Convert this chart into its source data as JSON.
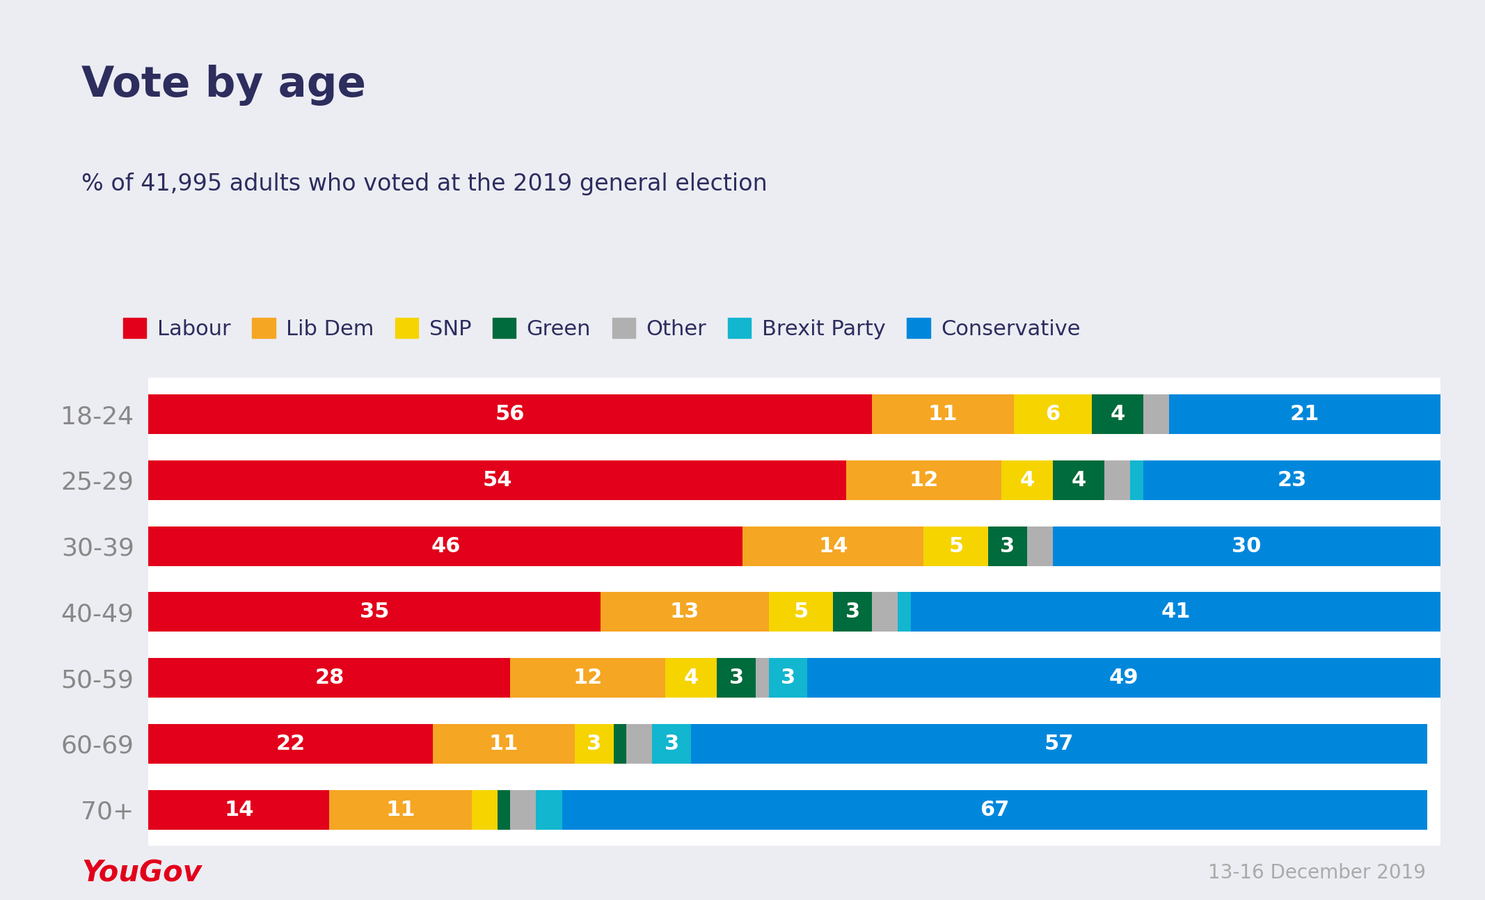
{
  "title": "Vote by age",
  "subtitle": "% of 41,995 adults who voted at the 2019 general election",
  "date_label": "13-16 December 2019",
  "yougov_label": "YouGov",
  "background_color": "#ecedf3",
  "age_groups": [
    "18-24",
    "25-29",
    "30-39",
    "40-49",
    "50-59",
    "60-69",
    "70+"
  ],
  "parties": [
    "Labour",
    "Lib Dem",
    "SNP",
    "Green",
    "Other",
    "Brexit Party",
    "Conservative"
  ],
  "colors": {
    "Labour": "#e2001a",
    "Lib Dem": "#f5a623",
    "SNP": "#f5d400",
    "Green": "#006b3c",
    "Other": "#b0b0b0",
    "Brexit Party": "#12b6cf",
    "Conservative": "#0087dc"
  },
  "data": {
    "18-24": {
      "Labour": 56,
      "Lib Dem": 11,
      "SNP": 6,
      "Green": 4,
      "Other": 2,
      "Brexit Party": 0,
      "Conservative": 21
    },
    "25-29": {
      "Labour": 54,
      "Lib Dem": 12,
      "SNP": 4,
      "Green": 4,
      "Other": 2,
      "Brexit Party": 1,
      "Conservative": 23
    },
    "30-39": {
      "Labour": 46,
      "Lib Dem": 14,
      "SNP": 5,
      "Green": 3,
      "Other": 2,
      "Brexit Party": 0,
      "Conservative": 30
    },
    "40-49": {
      "Labour": 35,
      "Lib Dem": 13,
      "SNP": 5,
      "Green": 3,
      "Other": 2,
      "Brexit Party": 1,
      "Conservative": 41
    },
    "50-59": {
      "Labour": 28,
      "Lib Dem": 12,
      "SNP": 4,
      "Green": 3,
      "Other": 1,
      "Brexit Party": 3,
      "Conservative": 49
    },
    "60-69": {
      "Labour": 22,
      "Lib Dem": 11,
      "SNP": 3,
      "Green": 1,
      "Other": 2,
      "Brexit Party": 3,
      "Conservative": 57
    },
    "70+": {
      "Labour": 14,
      "Lib Dem": 11,
      "SNP": 2,
      "Green": 1,
      "Other": 2,
      "Brexit Party": 2,
      "Conservative": 67
    }
  },
  "show_labels": {
    "18-24": {
      "Labour": true,
      "Lib Dem": true,
      "SNP": true,
      "Green": true,
      "Other": false,
      "Brexit Party": false,
      "Conservative": true
    },
    "25-29": {
      "Labour": true,
      "Lib Dem": true,
      "SNP": true,
      "Green": true,
      "Other": false,
      "Brexit Party": false,
      "Conservative": true
    },
    "30-39": {
      "Labour": true,
      "Lib Dem": true,
      "SNP": true,
      "Green": true,
      "Other": false,
      "Brexit Party": false,
      "Conservative": true
    },
    "40-49": {
      "Labour": true,
      "Lib Dem": true,
      "SNP": true,
      "Green": true,
      "Other": false,
      "Brexit Party": false,
      "Conservative": true
    },
    "50-59": {
      "Labour": true,
      "Lib Dem": true,
      "SNP": true,
      "Green": true,
      "Other": false,
      "Brexit Party": true,
      "Conservative": true
    },
    "60-69": {
      "Labour": true,
      "Lib Dem": true,
      "SNP": true,
      "Green": false,
      "Other": false,
      "Brexit Party": true,
      "Conservative": true
    },
    "70+": {
      "Labour": true,
      "Lib Dem": true,
      "SNP": false,
      "Green": false,
      "Other": false,
      "Brexit Party": false,
      "Conservative": true
    }
  },
  "title_fontsize": 44,
  "subtitle_fontsize": 24,
  "label_fontsize": 22,
  "tick_fontsize": 26,
  "legend_fontsize": 22,
  "bar_height": 0.6
}
